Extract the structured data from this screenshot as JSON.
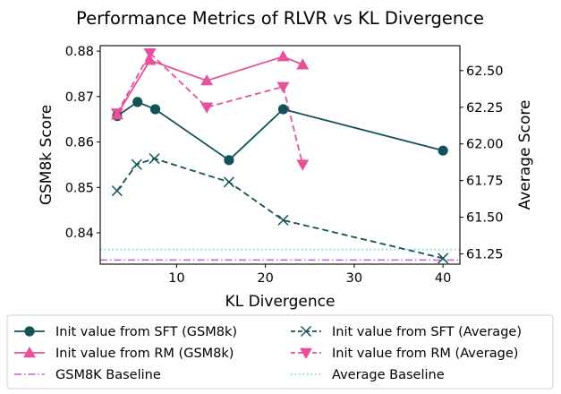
{
  "chart_data": {
    "type": "line",
    "title": "Performance Metrics of RLVR vs KL Divergence",
    "xlabel": "KL Divergence",
    "ylabel_left": "GSM8k Score",
    "ylabel_right": "Average Score",
    "xlim": [
      1.4,
      41.9
    ],
    "ylim_left": [
      0.8331,
      0.8812
    ],
    "ylim_right": [
      61.18,
      62.67
    ],
    "x_ticks": [
      "10",
      "20",
      "30",
      "40"
    ],
    "x_tick_values": [
      10,
      20,
      30,
      40
    ],
    "y_left_ticks": [
      "0.84",
      "0.85",
      "0.86",
      "0.87",
      "0.88"
    ],
    "y_left_tick_values": [
      0.84,
      0.85,
      0.86,
      0.87,
      0.88
    ],
    "y_right_ticks": [
      "61.25",
      "61.50",
      "61.75",
      "62.00",
      "62.25",
      "62.50"
    ],
    "y_right_tick_values": [
      61.25,
      61.5,
      61.75,
      62.0,
      62.25,
      62.5
    ],
    "grid": false,
    "legend_placement": "bottom (below plot, two columns)",
    "series": [
      {
        "name": "Init value from SFT (GSM8k)",
        "axis": "left",
        "color": "#14525a",
        "line": "solid",
        "marker": "circle",
        "x": [
          3.3,
          5.6,
          7.6,
          15.9,
          22.0,
          40.0
        ],
        "y": [
          0.8657,
          0.8688,
          0.8672,
          0.856,
          0.8672,
          0.8581
        ]
      },
      {
        "name": "Init value from RM (GSM8k)",
        "axis": "left",
        "color": "#e8509a",
        "line": "solid",
        "marker": "triangle-up",
        "x": [
          3.3,
          7.0,
          13.4,
          22.0,
          24.2
        ],
        "y": [
          0.866,
          0.878,
          0.8735,
          0.8788,
          0.877
        ]
      },
      {
        "name": "GSM8K Baseline",
        "axis": "left",
        "color": "#c65ee0",
        "line": "dashdot",
        "marker": "none",
        "hline": 0.834
      },
      {
        "name": "Init value from SFT (Average)",
        "axis": "right",
        "color": "#14525a",
        "line": "dashed",
        "marker": "x",
        "x": [
          3.3,
          5.5,
          7.5,
          15.9,
          22.0,
          40.0
        ],
        "y": [
          61.68,
          61.86,
          61.9,
          61.74,
          61.48,
          61.22
        ]
      },
      {
        "name": "Init value from RM (Average)",
        "axis": "right",
        "color": "#e8509a",
        "line": "dashed",
        "marker": "triangle-down",
        "x": [
          3.3,
          7.0,
          13.4,
          22.0,
          24.2
        ],
        "y": [
          62.21,
          62.62,
          62.25,
          62.39,
          61.86
        ]
      },
      {
        "name": "Average Baseline",
        "axis": "right",
        "color": "#5fd3cc",
        "line": "dotted",
        "marker": "none",
        "hline": 61.28
      }
    ]
  },
  "legend": {
    "left_column": [
      "Init value from SFT (GSM8k)",
      "Init value from RM (GSM8k)",
      "GSM8K Baseline"
    ],
    "right_column": [
      "Init value from SFT (Average)",
      "Init value from RM (Average)",
      "Average Baseline"
    ]
  }
}
